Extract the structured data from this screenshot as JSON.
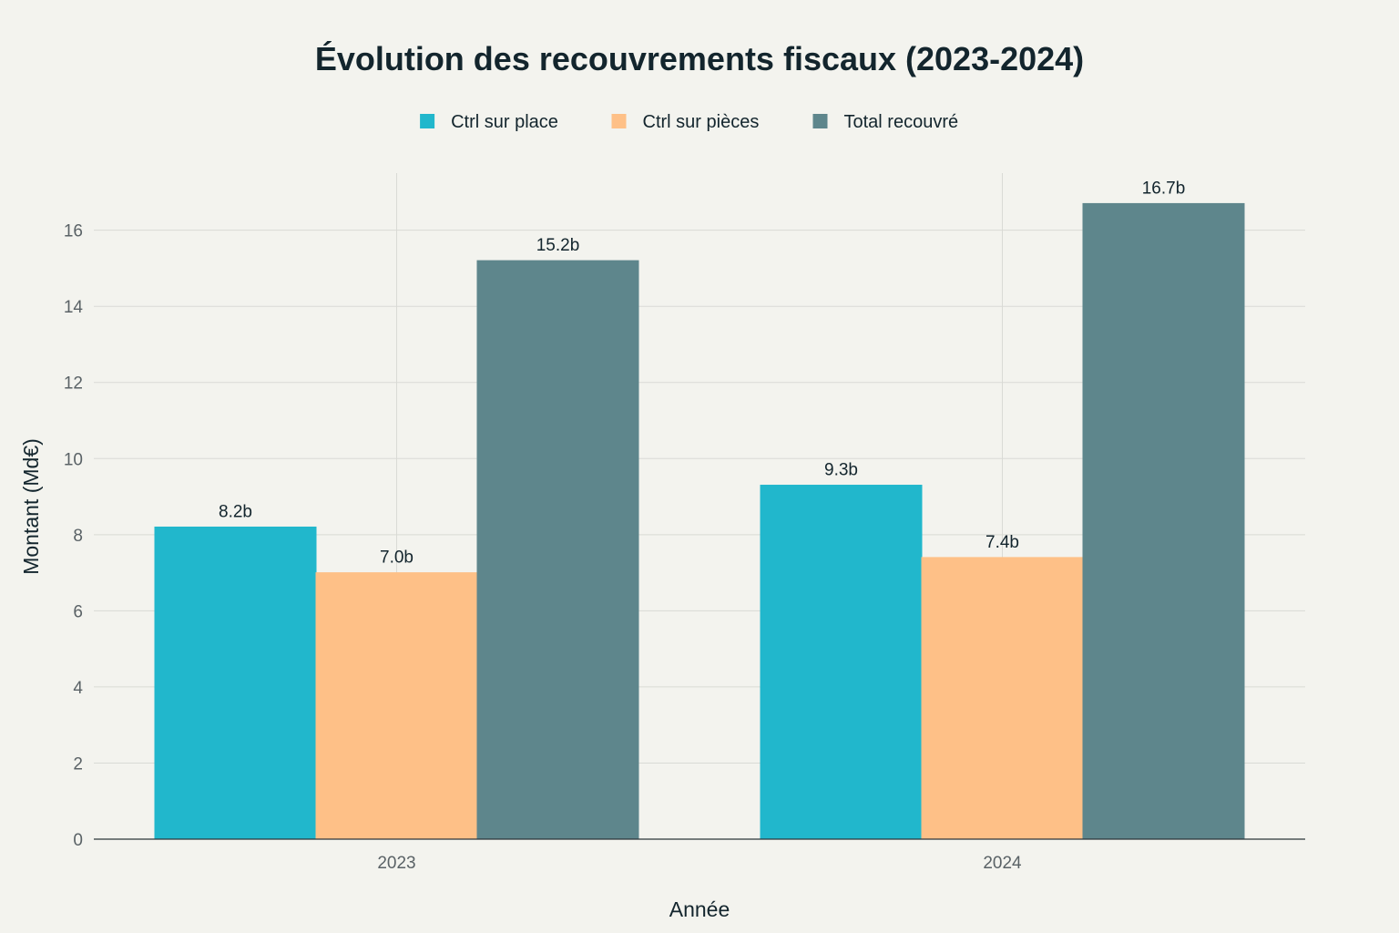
{
  "chart_data": {
    "type": "bar",
    "title": "Évolution des recouvrements fiscaux (2023-2024)",
    "xlabel": "Année",
    "ylabel": "Montant (Md€)",
    "categories": [
      "2023",
      "2024"
    ],
    "series": [
      {
        "name": "Ctrl sur place",
        "values": [
          8.2,
          9.3
        ],
        "labels": [
          "8.2b",
          "9.3b"
        ],
        "color": "#21b7cc"
      },
      {
        "name": "Ctrl sur pièces",
        "values": [
          7.0,
          7.4
        ],
        "labels": [
          "7.0b",
          "7.4b"
        ],
        "color": "#fec087"
      },
      {
        "name": "Total recouvré",
        "values": [
          15.2,
          16.7
        ],
        "labels": [
          "15.2b",
          "16.7b"
        ],
        "color": "#5e868c"
      }
    ],
    "ylim": [
      0,
      17.5
    ],
    "yticks": [
      0,
      2,
      4,
      6,
      8,
      10,
      12,
      14,
      16
    ],
    "grid": true,
    "legend_position": "top-center"
  }
}
